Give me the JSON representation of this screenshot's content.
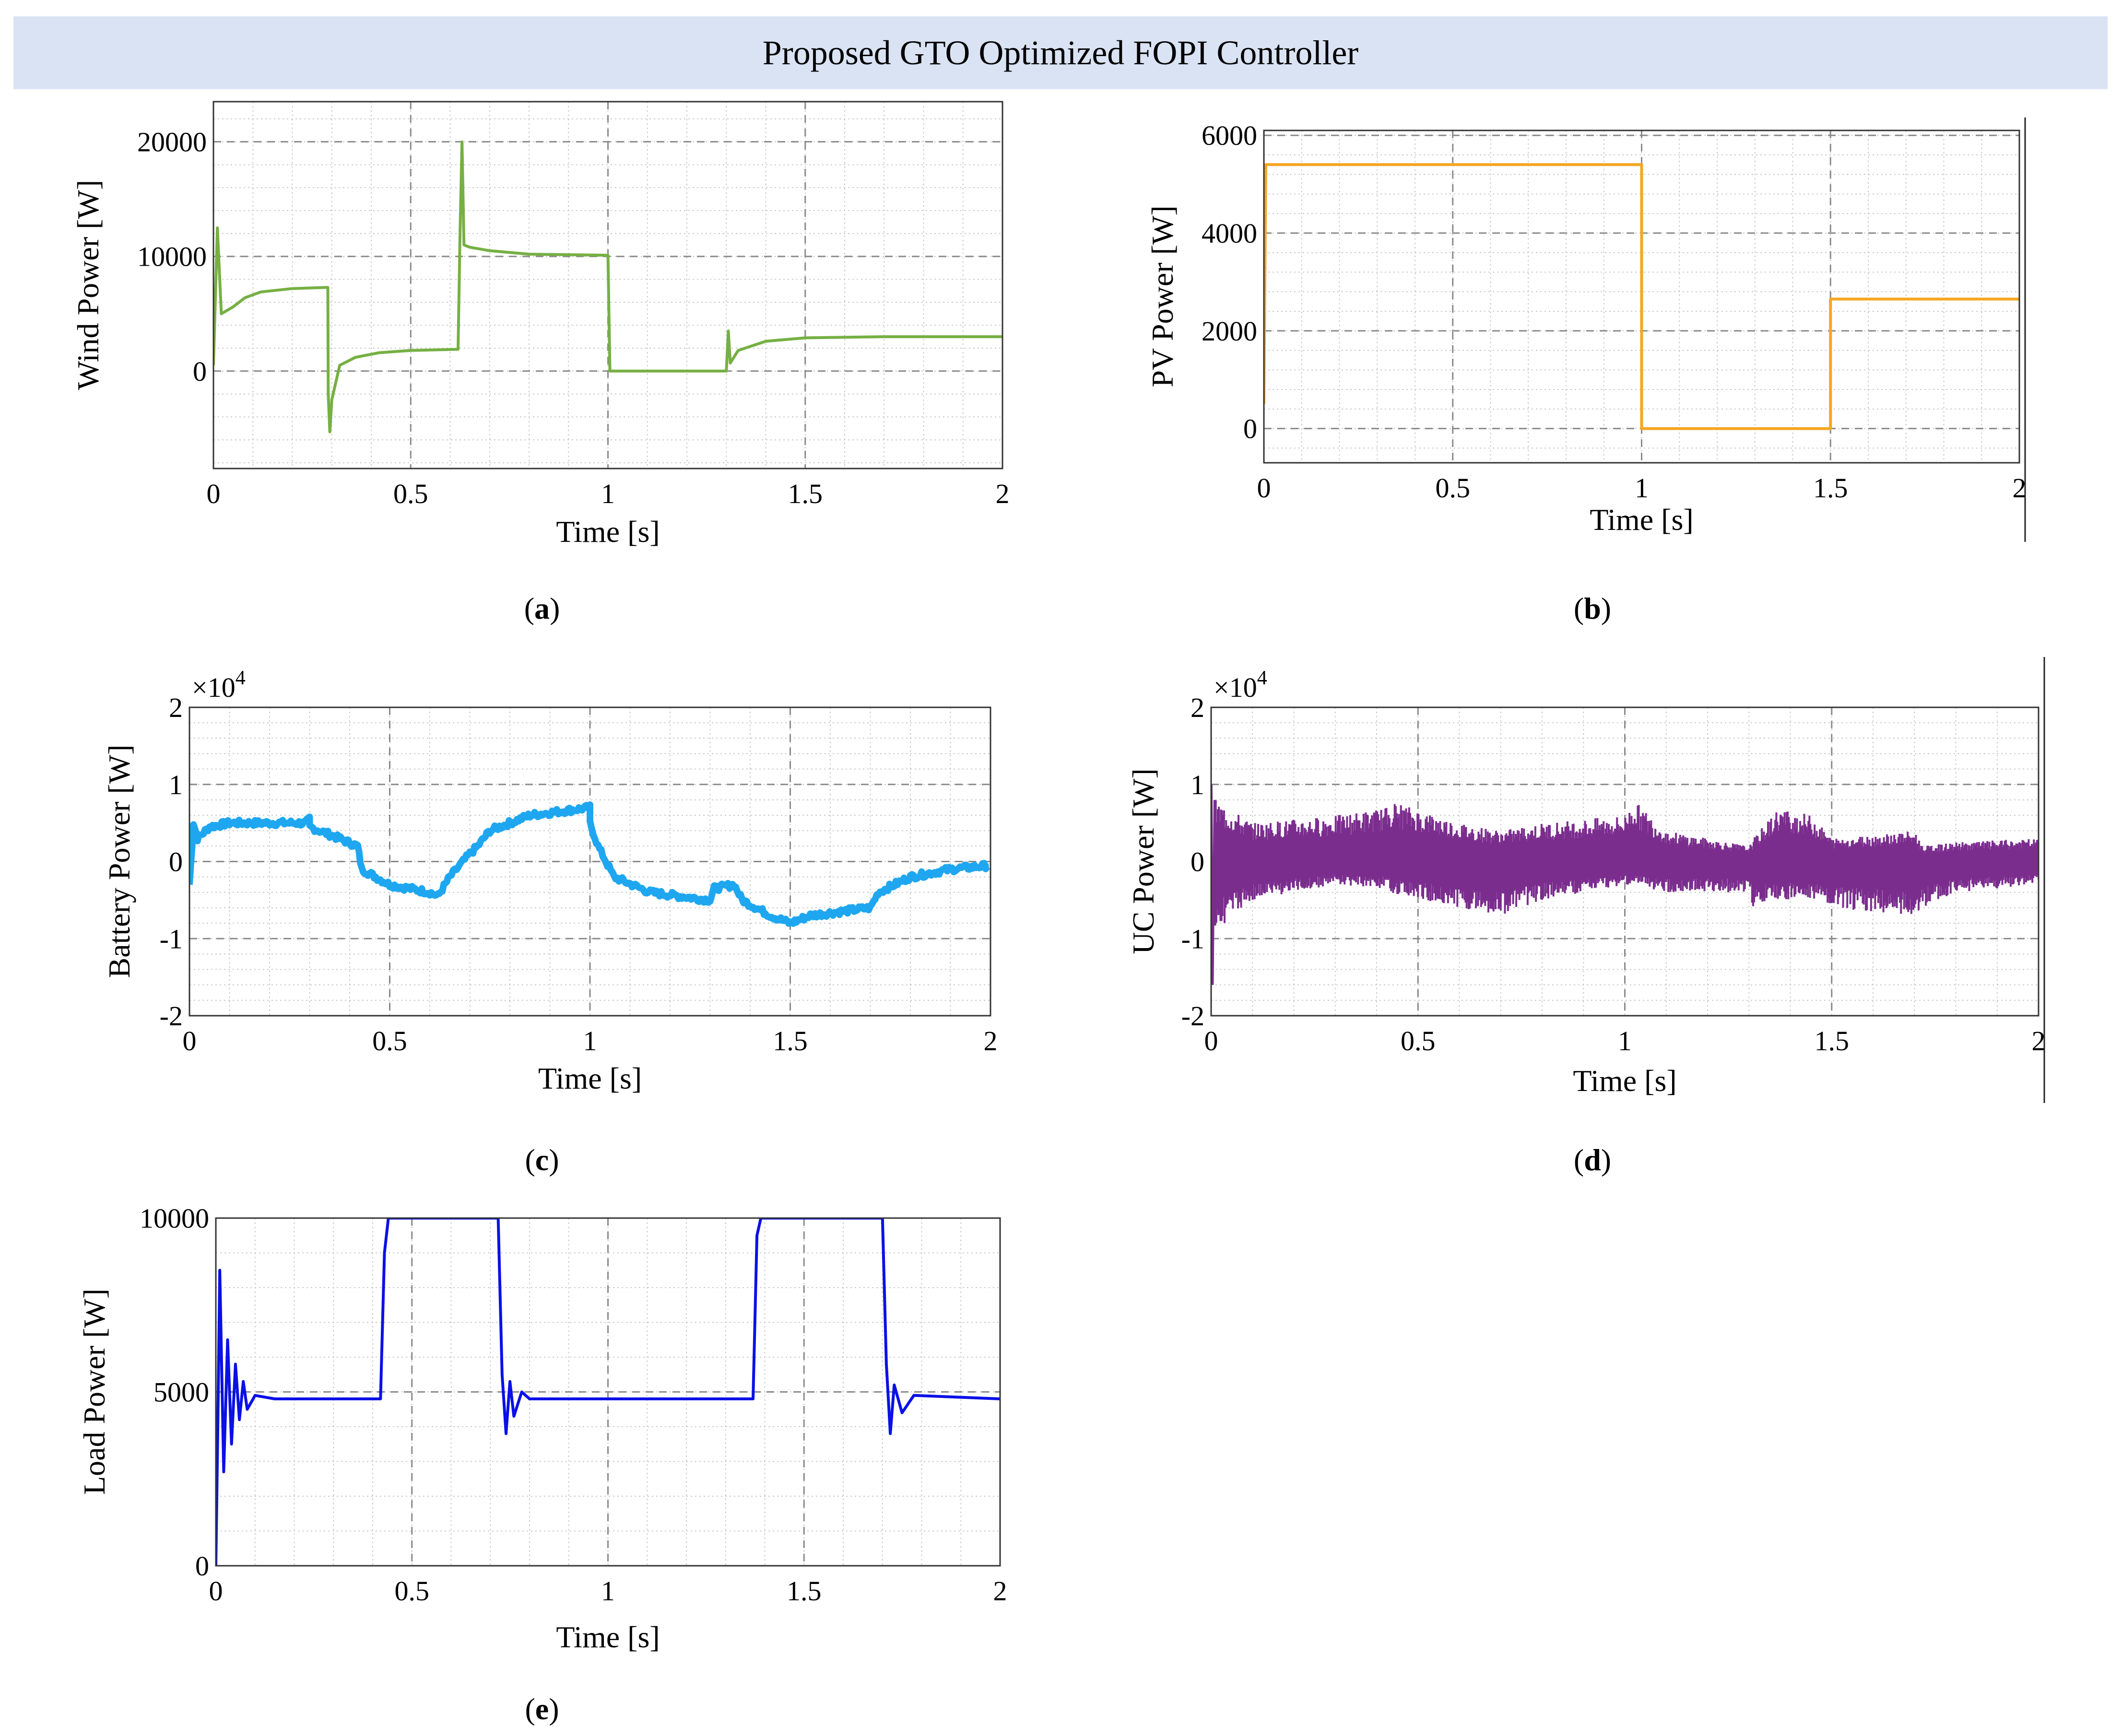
{
  "banner_title": "Proposed GTO Optimized FOPI Controller",
  "chart_data": [
    {
      "id": "a",
      "type": "line",
      "caption_letter": "a",
      "xlabel": "Time [s]",
      "ylabel": "Wind Power [W]",
      "exponent_label": "",
      "xlim": [
        0,
        2
      ],
      "ylim": [
        -8500,
        23500
      ],
      "xticks": [
        0,
        0.5,
        1,
        1.5,
        2
      ],
      "xtick_labels": [
        "0",
        "0.5",
        "1",
        "1.5",
        "2"
      ],
      "yticks": [
        0,
        10000,
        20000
      ],
      "ytick_labels": [
        "0",
        "10000",
        "20000"
      ],
      "color": "#76b043",
      "noise": 0,
      "series": [
        {
          "points": [
            [
              0,
              500
            ],
            [
              0.01,
              12500
            ],
            [
              0.02,
              5000
            ],
            [
              0.05,
              5600
            ],
            [
              0.08,
              6400
            ],
            [
              0.12,
              6900
            ],
            [
              0.2,
              7200
            ],
            [
              0.29,
              7300
            ],
            [
              0.291,
              -2000
            ],
            [
              0.295,
              -5300
            ],
            [
              0.3,
              -2500
            ],
            [
              0.32,
              500
            ],
            [
              0.36,
              1200
            ],
            [
              0.42,
              1600
            ],
            [
              0.5,
              1800
            ],
            [
              0.62,
              1900
            ],
            [
              0.625,
              12000
            ],
            [
              0.63,
              20000
            ],
            [
              0.635,
              11000
            ],
            [
              0.65,
              10800
            ],
            [
              0.7,
              10500
            ],
            [
              0.8,
              10200
            ],
            [
              1.0,
              10100
            ],
            [
              1.005,
              0
            ],
            [
              1.3,
              0
            ],
            [
              1.305,
              3500
            ],
            [
              1.31,
              700
            ],
            [
              1.33,
              1800
            ],
            [
              1.4,
              2600
            ],
            [
              1.5,
              2900
            ],
            [
              1.7,
              3000
            ],
            [
              2.0,
              3000
            ]
          ]
        }
      ]
    },
    {
      "id": "b",
      "type": "line",
      "caption_letter": "b",
      "xlabel": "Time [s]",
      "ylabel": "PV Power [W]",
      "exponent_label": "",
      "xlim": [
        0,
        2
      ],
      "ylim": [
        -700,
        6100
      ],
      "xticks": [
        0,
        0.5,
        1,
        1.5,
        2
      ],
      "xtick_labels": [
        "0",
        "0.5",
        "1",
        "1.5",
        "2"
      ],
      "yticks": [
        0,
        2000,
        4000,
        6000
      ],
      "ytick_labels": [
        "0",
        "2000",
        "4000",
        "6000"
      ],
      "color": "#f5a623",
      "noise": 0,
      "series": [
        {
          "points": [
            [
              0,
              500
            ],
            [
              0.005,
              5400
            ],
            [
              1.0,
              5400
            ],
            [
              1.0,
              0
            ],
            [
              1.5,
              0
            ],
            [
              1.5,
              2650
            ],
            [
              2.0,
              2650
            ]
          ]
        }
      ]
    },
    {
      "id": "c",
      "type": "line",
      "caption_letter": "c",
      "xlabel": "Time [s]",
      "ylabel": "Battery Power [W]",
      "exponent_label": "×10^4",
      "xlim": [
        0,
        2
      ],
      "ylim": [
        -2,
        2
      ],
      "xticks": [
        0,
        0.5,
        1,
        1.5,
        2
      ],
      "xtick_labels": [
        "0",
        "0.5",
        "1",
        "1.5",
        "2"
      ],
      "yticks": [
        -2,
        -1,
        0,
        1,
        2
      ],
      "ytick_labels": [
        "-2",
        "-1",
        "0",
        "1",
        "2"
      ],
      "color": "#1ea7f0",
      "noise": 0.04,
      "series": [
        {
          "points": [
            [
              0,
              -0.3
            ],
            [
              0.01,
              0.5
            ],
            [
              0.02,
              0.3
            ],
            [
              0.05,
              0.45
            ],
            [
              0.1,
              0.5
            ],
            [
              0.2,
              0.5
            ],
            [
              0.29,
              0.5
            ],
            [
              0.3,
              0.55
            ],
            [
              0.3,
              0.45
            ],
            [
              0.35,
              0.35
            ],
            [
              0.42,
              0.2
            ],
            [
              0.43,
              -0.1
            ],
            [
              0.5,
              -0.3
            ],
            [
              0.6,
              -0.4
            ],
            [
              0.62,
              -0.45
            ],
            [
              0.65,
              -0.2
            ],
            [
              0.7,
              0.1
            ],
            [
              0.72,
              0.2
            ],
            [
              0.75,
              0.4
            ],
            [
              0.85,
              0.6
            ],
            [
              1.0,
              0.7
            ],
            [
              1.0,
              0.5
            ],
            [
              1.02,
              0.2
            ],
            [
              1.06,
              -0.2
            ],
            [
              1.15,
              -0.4
            ],
            [
              1.3,
              -0.5
            ],
            [
              1.31,
              -0.35
            ],
            [
              1.36,
              -0.3
            ],
            [
              1.38,
              -0.5
            ],
            [
              1.45,
              -0.7
            ],
            [
              1.5,
              -0.8
            ],
            [
              1.55,
              -0.7
            ],
            [
              1.7,
              -0.6
            ],
            [
              1.72,
              -0.4
            ],
            [
              1.8,
              -0.2
            ],
            [
              1.9,
              -0.1
            ],
            [
              2.0,
              -0.05
            ]
          ]
        }
      ]
    },
    {
      "id": "d",
      "type": "line",
      "caption_letter": "d",
      "xlabel": "Time [s]",
      "ylabel": "UC Power [W]",
      "exponent_label": "×10^4",
      "xlim": [
        0,
        2
      ],
      "ylim": [
        -2,
        2
      ],
      "xticks": [
        0,
        0.5,
        1,
        1.5,
        2
      ],
      "xtick_labels": [
        "0",
        "0.5",
        "1",
        "1.5",
        "2"
      ],
      "yticks": [
        -2,
        -1,
        0,
        1,
        2
      ],
      "ytick_labels": [
        "-2",
        "-1",
        "0",
        "1",
        "2"
      ],
      "color": "#7b2d8e",
      "noise": 0,
      "band": [
        [
          0.01,
          -0.9,
          0.8
        ],
        [
          0.1,
          -0.5,
          0.5
        ],
        [
          0.3,
          -0.3,
          0.6
        ],
        [
          0.42,
          -0.35,
          0.7
        ],
        [
          0.43,
          -0.4,
          0.8
        ],
        [
          0.6,
          -0.6,
          0.5
        ],
        [
          0.7,
          -0.7,
          0.4
        ],
        [
          0.8,
          -0.5,
          0.5
        ],
        [
          0.9,
          -0.4,
          0.55
        ],
        [
          1.0,
          -0.3,
          0.6
        ],
        [
          1.02,
          -0.3,
          0.8
        ],
        [
          1.1,
          -0.4,
          0.4
        ],
        [
          1.3,
          -0.4,
          0.2
        ],
        [
          1.31,
          -0.6,
          0.3
        ],
        [
          1.37,
          -0.5,
          0.7
        ],
        [
          1.45,
          -0.5,
          0.6
        ],
        [
          1.5,
          -0.6,
          0.3
        ],
        [
          1.7,
          -0.7,
          0.4
        ],
        [
          1.72,
          -0.6,
          0.2
        ],
        [
          1.8,
          -0.4,
          0.25
        ],
        [
          2.0,
          -0.3,
          0.3
        ]
      ]
    },
    {
      "id": "e",
      "type": "line",
      "caption_letter": "e",
      "xlabel": "Time [s]",
      "ylabel": "Load Power [W]",
      "exponent_label": "",
      "xlim": [
        0,
        2
      ],
      "ylim": [
        0,
        10000
      ],
      "xticks": [
        0,
        0.5,
        1,
        1.5,
        2
      ],
      "xtick_labels": [
        "0",
        "0.5",
        "1",
        "1.5",
        "2"
      ],
      "yticks": [
        0,
        5000,
        10000
      ],
      "ytick_labels": [
        "0",
        "5000",
        "10000"
      ],
      "color": "#0a10e6",
      "noise": 0,
      "series": [
        {
          "points": [
            [
              0,
              0
            ],
            [
              0.005,
              4000
            ],
            [
              0.01,
              8500
            ],
            [
              0.02,
              2700
            ],
            [
              0.03,
              6500
            ],
            [
              0.04,
              3500
            ],
            [
              0.05,
              5800
            ],
            [
              0.06,
              4200
            ],
            [
              0.07,
              5300
            ],
            [
              0.08,
              4500
            ],
            [
              0.1,
              4900
            ],
            [
              0.15,
              4800
            ],
            [
              0.42,
              4800
            ],
            [
              0.43,
              9000
            ],
            [
              0.44,
              10000
            ],
            [
              0.72,
              10000
            ],
            [
              0.73,
              5500
            ],
            [
              0.74,
              3800
            ],
            [
              0.75,
              5300
            ],
            [
              0.76,
              4300
            ],
            [
              0.78,
              5000
            ],
            [
              0.8,
              4800
            ],
            [
              1.37,
              4800
            ],
            [
              1.38,
              9500
            ],
            [
              1.39,
              10000
            ],
            [
              1.7,
              10000
            ],
            [
              1.71,
              5800
            ],
            [
              1.72,
              3800
            ],
            [
              1.73,
              5200
            ],
            [
              1.75,
              4400
            ],
            [
              1.78,
              4900
            ],
            [
              2.0,
              4800
            ]
          ]
        }
      ]
    }
  ]
}
